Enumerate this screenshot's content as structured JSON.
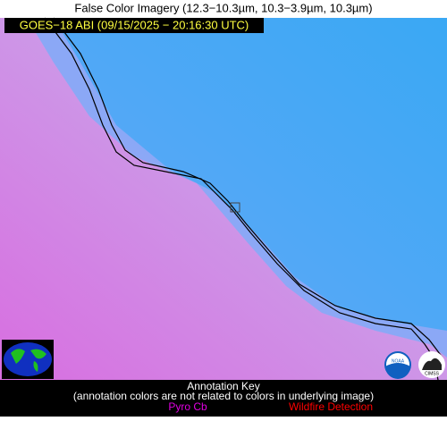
{
  "header": {
    "title": "False Color Imagery (12.3−10.3µm, 10.3−3.9µm, 10.3µm)",
    "timestamp": "GOES−18 ABI (09/15/2025 − 20:16:30 UTC)"
  },
  "logos": {
    "noaa": "NOAA",
    "cimss": "CIMSS"
  },
  "key": {
    "title": "Annotation Key",
    "note": "(annotation colors are not related to colors in underlying image)",
    "items": [
      {
        "label": "Pyro Cb",
        "color": "#e000e0"
      },
      {
        "label": "Wildfire Detection",
        "color": "#ff0000"
      }
    ]
  }
}
